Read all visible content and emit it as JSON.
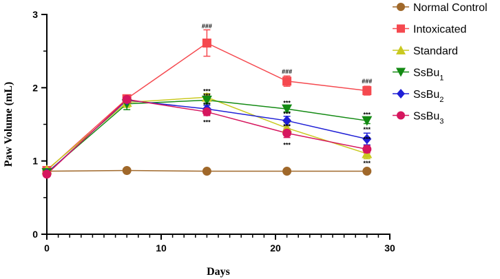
{
  "chart_data": {
    "type": "line",
    "title": "",
    "xlabel": "Days",
    "ylabel": "Paw Volume (mL)",
    "xlim": [
      0,
      30
    ],
    "ylim": [
      0,
      3
    ],
    "xticks": [
      "0",
      "10",
      "20",
      "30"
    ],
    "yticks": [
      "0",
      "1",
      "2",
      "3"
    ],
    "x": [
      0,
      7,
      14,
      21,
      28
    ],
    "series": [
      {
        "name": "Normal Control",
        "color": "#a0682a",
        "marker": "circle",
        "values": [
          0.86,
          0.87,
          0.86,
          0.86,
          0.86
        ],
        "errors": [
          0.01,
          0.01,
          0.01,
          0.01,
          0.01
        ]
      },
      {
        "name": "Intoxicated",
        "color": "#f5494f",
        "marker": "square",
        "values": [
          0.87,
          1.85,
          2.61,
          2.09,
          1.96
        ],
        "errors": [
          0.03,
          0.05,
          0.18,
          0.07,
          0.06
        ]
      },
      {
        "name": "Standard",
        "color": "#c9c920",
        "marker": "triangle-up",
        "values": [
          0.88,
          1.8,
          1.87,
          1.45,
          1.1
        ],
        "errors": [
          0.03,
          0.07,
          0.05,
          0.07,
          0.07
        ]
      },
      {
        "name": "SsBu",
        "subscript": "1",
        "color": "#138a13",
        "marker": "triangle-down",
        "values": [
          0.84,
          1.78,
          1.83,
          1.71,
          1.55
        ],
        "errors": [
          0.03,
          0.08,
          0.05,
          0.04,
          0.04
        ]
      },
      {
        "name": "SsBu",
        "subscript": "2",
        "color": "#1f1fd6",
        "marker": "diamond",
        "values": [
          0.83,
          1.83,
          1.71,
          1.55,
          1.3
        ],
        "errors": [
          0.03,
          0.05,
          0.05,
          0.06,
          0.08
        ]
      },
      {
        "name": "SsBu",
        "subscript": "3",
        "color": "#d6165e",
        "marker": "circle",
        "values": [
          0.82,
          1.84,
          1.67,
          1.38,
          1.16
        ],
        "errors": [
          0.03,
          0.05,
          0.05,
          0.06,
          0.05
        ]
      }
    ],
    "annotations": [
      {
        "x": 14,
        "y": 2.84,
        "text": "###"
      },
      {
        "x": 21,
        "y": 2.22,
        "text": "###"
      },
      {
        "x": 28,
        "y": 2.09,
        "text": "###"
      },
      {
        "x": 14,
        "y": 1.95,
        "text": "***"
      },
      {
        "x": 14,
        "y": 1.89,
        "text": "***"
      },
      {
        "x": 14,
        "y": 1.77,
        "text": "***"
      },
      {
        "x": 14,
        "y": 1.53,
        "text": "***"
      },
      {
        "x": 21,
        "y": 1.79,
        "text": "***"
      },
      {
        "x": 21,
        "y": 1.64,
        "text": "***"
      },
      {
        "x": 21,
        "y": 1.47,
        "text": "***"
      },
      {
        "x": 21,
        "y": 1.22,
        "text": "***"
      },
      {
        "x": 28,
        "y": 1.63,
        "text": "***"
      },
      {
        "x": 28,
        "y": 1.43,
        "text": "***"
      },
      {
        "x": 28,
        "y": 1.3,
        "text": "***"
      },
      {
        "x": 28,
        "y": 0.97,
        "text": "***"
      }
    ],
    "legend_position": "top-right"
  }
}
